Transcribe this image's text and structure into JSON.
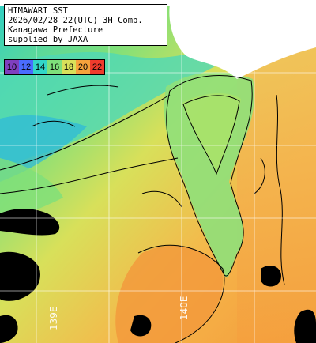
{
  "caption": {
    "lines": [
      "HIMAWARI SST",
      "2026/02/28 22(UTC) 3H Comp.",
      "Kanagawa Prefecture",
      "supplied by JAXA"
    ]
  },
  "legend": {
    "entries": [
      {
        "label": "10",
        "color": "#7f3fbf"
      },
      {
        "label": "12",
        "color": "#4a6cff"
      },
      {
        "label": "14",
        "color": "#32d6c8"
      },
      {
        "label": "16",
        "color": "#7ee07a"
      },
      {
        "label": "18",
        "color": "#d8e05a"
      },
      {
        "label": "20",
        "color": "#f6a23c"
      },
      {
        "label": "22",
        "color": "#ef3b2c"
      }
    ]
  },
  "grid": {
    "lon_labels": [
      "139E",
      "140E"
    ]
  },
  "colors": {
    "land": "#ffffff",
    "no_data": "#000000",
    "contour": "#000000",
    "grid": "#ffffff"
  }
}
